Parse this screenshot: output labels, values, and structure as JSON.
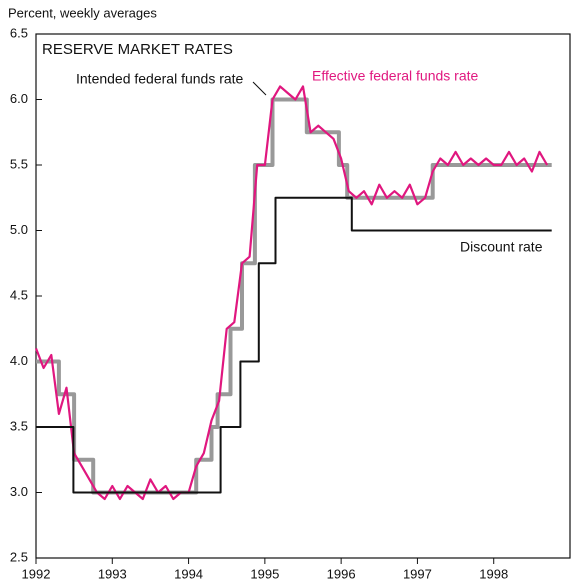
{
  "chart_data": {
    "type": "line",
    "title": "RESERVE MARKET RATES",
    "y_label": "Percent, weekly averages",
    "xlim": [
      1992,
      1999
    ],
    "xticks": [
      1992,
      1993,
      1994,
      1995,
      1996,
      1997,
      1998
    ],
    "ylim": [
      2.5,
      6.5
    ],
    "yticks": [
      {
        "value": 2.5,
        "label": "2.5"
      },
      {
        "value": 3,
        "label": "3.0"
      },
      {
        "value": 3.5,
        "label": "3.5"
      },
      {
        "value": 4,
        "label": "4.0"
      },
      {
        "value": 4.5,
        "label": "4.5"
      },
      {
        "value": 5,
        "label": "5.0"
      },
      {
        "value": 5.5,
        "label": "5.5"
      },
      {
        "value": 6,
        "label": "6.0"
      },
      {
        "value": 6.5,
        "label": "6.5"
      }
    ],
    "series": [
      {
        "name": "Intended federal funds rate",
        "color": "#999999",
        "x": [
          1992,
          1992.3,
          1992.3,
          1992.5,
          1992.5,
          1992.75,
          1992.75,
          1994.1,
          1994.1,
          1994.3,
          1994.3,
          1994.38,
          1994.38,
          1994.55,
          1994.55,
          1994.7,
          1994.7,
          1994.87,
          1994.87,
          1995.1,
          1995.1,
          1995.55,
          1995.55,
          1995.97,
          1995.97,
          1996.08,
          1996.08,
          1997.2,
          1997.2,
          1998.76
        ],
        "values": [
          4,
          4,
          3.75,
          3.75,
          3.25,
          3.25,
          3,
          3,
          3.25,
          3.25,
          3.5,
          3.5,
          3.75,
          3.75,
          4.25,
          4.25,
          4.75,
          4.75,
          5.5,
          5.5,
          6,
          6,
          5.75,
          5.75,
          5.5,
          5.5,
          5.25,
          5.25,
          5.5,
          5.5
        ]
      },
      {
        "name": "Effective federal funds rate",
        "color": "#e0177f",
        "x": [
          1992,
          1992.1,
          1992.2,
          1992.3,
          1992.4,
          1992.5,
          1992.6,
          1992.7,
          1992.8,
          1992.9,
          1993,
          1993.1,
          1993.2,
          1993.3,
          1993.4,
          1993.5,
          1993.6,
          1993.7,
          1993.8,
          1993.9,
          1994,
          1994.1,
          1994.2,
          1994.3,
          1994.4,
          1994.5,
          1994.6,
          1994.7,
          1994.8,
          1994.9,
          1995,
          1995.1,
          1995.2,
          1995.3,
          1995.4,
          1995.5,
          1995.6,
          1995.7,
          1995.8,
          1995.9,
          1996,
          1996.1,
          1996.2,
          1996.3,
          1996.4,
          1996.5,
          1996.6,
          1996.7,
          1996.8,
          1996.9,
          1997,
          1997.1,
          1997.2,
          1997.3,
          1997.4,
          1997.5,
          1997.6,
          1997.7,
          1997.8,
          1997.9,
          1998,
          1998.1,
          1998.2,
          1998.3,
          1998.4,
          1998.5,
          1998.6,
          1998.7
        ],
        "values": [
          4.1,
          3.95,
          4.05,
          3.6,
          3.8,
          3.3,
          3.2,
          3.1,
          3,
          2.95,
          3.05,
          2.95,
          3.05,
          3,
          2.95,
          3.1,
          3,
          3.05,
          2.95,
          3,
          3,
          3.2,
          3.3,
          3.55,
          3.7,
          4.25,
          4.3,
          4.75,
          4.8,
          5.5,
          5.5,
          6,
          6.1,
          6.05,
          6,
          6.1,
          5.75,
          5.8,
          5.75,
          5.7,
          5.55,
          5.3,
          5.25,
          5.3,
          5.2,
          5.35,
          5.25,
          5.3,
          5.25,
          5.35,
          5.2,
          5.25,
          5.45,
          5.55,
          5.5,
          5.6,
          5.5,
          5.55,
          5.5,
          5.55,
          5.5,
          5.5,
          5.6,
          5.5,
          5.55,
          5.45,
          5.6,
          5.5
        ]
      },
      {
        "name": "Discount rate",
        "color": "#111111",
        "x": [
          1992,
          1992.49,
          1992.49,
          1994.42,
          1994.42,
          1994.68,
          1994.68,
          1994.92,
          1994.92,
          1995.14,
          1995.14,
          1996.14,
          1996.14,
          1998.76
        ],
        "values": [
          3.5,
          3.5,
          3,
          3,
          3.5,
          3.5,
          4,
          4,
          4.75,
          4.75,
          5.25,
          5.25,
          5,
          5
        ]
      }
    ]
  }
}
